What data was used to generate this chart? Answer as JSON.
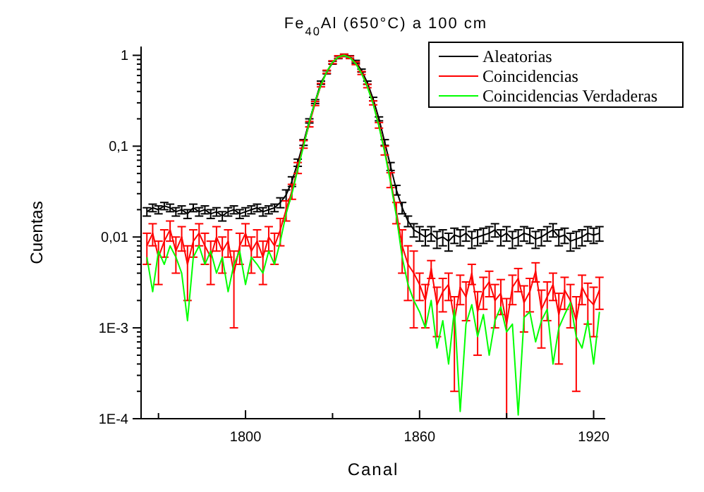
{
  "chart_data": {
    "type": "line",
    "title": "Fe$_{40}$Al (650°C) a 100 cm",
    "xlabel": "Canal",
    "ylabel": "Cuentas",
    "log": "y",
    "legend": "top right",
    "marker": "none",
    "line_style": "solid",
    "grid": false,
    "xlim": [
      1764,
      1924
    ],
    "xticks": [
      {
        "value": 1770,
        "label": null
      },
      1800,
      {
        "value": 1830,
        "label": null
      },
      1860,
      {
        "value": 1890,
        "label": null
      },
      1920
    ],
    "ylim": [
      0.0001,
      1.25
    ],
    "yticks": [
      {
        "value": 0.0001,
        "label": "1E-4"
      },
      {
        "value": 0.0002,
        "label": null
      },
      {
        "value": 0.0003,
        "label": null
      },
      {
        "value": 0.0004,
        "label": null
      },
      {
        "value": 0.0005,
        "label": null
      },
      {
        "value": 0.0006,
        "label": null
      },
      {
        "value": 0.0007,
        "label": null
      },
      {
        "value": 0.0008,
        "label": null
      },
      {
        "value": 0.0009,
        "label": null
      },
      {
        "value": 0.001,
        "label": "1E-3"
      },
      {
        "value": 0.002,
        "label": null
      },
      {
        "value": 0.003,
        "label": null
      },
      {
        "value": 0.004,
        "label": null
      },
      {
        "value": 0.005,
        "label": null
      },
      {
        "value": 0.006,
        "label": null
      },
      {
        "value": 0.007,
        "label": null
      },
      {
        "value": 0.008,
        "label": null
      },
      {
        "value": 0.009,
        "label": null
      },
      {
        "value": 0.01,
        "label": "0,01"
      },
      {
        "value": 0.02,
        "label": null
      },
      {
        "value": 0.03,
        "label": null
      },
      {
        "value": 0.04,
        "label": null
      },
      {
        "value": 0.05,
        "label": null
      },
      {
        "value": 0.06,
        "label": null
      },
      {
        "value": 0.07,
        "label": null
      },
      {
        "value": 0.08,
        "label": null
      },
      {
        "value": 0.09,
        "label": null
      },
      {
        "value": 0.1,
        "label": "0,1"
      },
      {
        "value": 0.2,
        "label": null
      },
      {
        "value": 0.3,
        "label": null
      },
      {
        "value": 0.4,
        "label": null
      },
      {
        "value": 0.5,
        "label": null
      },
      {
        "value": 0.6,
        "label": null
      },
      {
        "value": 0.7,
        "label": null
      },
      {
        "value": 0.8,
        "label": null
      },
      {
        "value": 0.9,
        "label": null
      },
      1
    ],
    "x": [
      1766,
      1768,
      1770,
      1772,
      1774,
      1776,
      1778,
      1780,
      1782,
      1784,
      1786,
      1788,
      1790,
      1792,
      1794,
      1796,
      1798,
      1800,
      1802,
      1804,
      1806,
      1808,
      1810,
      1812,
      1814,
      1816,
      1818,
      1820,
      1822,
      1824,
      1826,
      1828,
      1830,
      1832,
      1834,
      1836,
      1838,
      1840,
      1842,
      1844,
      1846,
      1848,
      1850,
      1852,
      1854,
      1856,
      1858,
      1860,
      1862,
      1864,
      1866,
      1868,
      1870,
      1872,
      1874,
      1876,
      1878,
      1880,
      1882,
      1884,
      1886,
      1888,
      1890,
      1892,
      1894,
      1896,
      1898,
      1900,
      1902,
      1904,
      1906,
      1908,
      1910,
      1912,
      1914,
      1916,
      1918,
      1920,
      1922
    ],
    "series": [
      {
        "name": "Aleatorias",
        "color": "#000000",
        "values": [
          0.019,
          0.021,
          0.02,
          0.022,
          0.021,
          0.019,
          0.02,
          0.018,
          0.021,
          0.019,
          0.02,
          0.018,
          0.019,
          0.017,
          0.019,
          0.02,
          0.018,
          0.019,
          0.02,
          0.021,
          0.019,
          0.02,
          0.021,
          0.024,
          0.029,
          0.041,
          0.066,
          0.11,
          0.19,
          0.31,
          0.5,
          0.65,
          0.83,
          0.95,
          1.0,
          0.96,
          0.85,
          0.68,
          0.5,
          0.33,
          0.2,
          0.11,
          0.06,
          0.033,
          0.021,
          0.015,
          0.012,
          0.011,
          0.01,
          0.011,
          0.0095,
          0.01,
          0.009,
          0.0105,
          0.01,
          0.011,
          0.0095,
          0.01,
          0.0105,
          0.011,
          0.012,
          0.01,
          0.011,
          0.0095,
          0.01,
          0.011,
          0.0105,
          0.0095,
          0.01,
          0.011,
          0.012,
          0.01,
          0.0105,
          0.009,
          0.0095,
          0.01,
          0.011,
          0.0105,
          0.011
        ],
        "errors": [
          0.002,
          0.002,
          0.002,
          0.002,
          0.002,
          0.002,
          0.002,
          0.002,
          0.002,
          0.002,
          0.002,
          0.002,
          0.002,
          0.002,
          0.002,
          0.002,
          0.002,
          0.002,
          0.002,
          0.002,
          0.002,
          0.002,
          0.002,
          0.003,
          0.004,
          0.005,
          0.006,
          0.008,
          0.01,
          0.015,
          0.02,
          0.025,
          0.03,
          0.03,
          0.03,
          0.03,
          0.03,
          0.025,
          0.02,
          0.015,
          0.01,
          0.008,
          0.006,
          0.004,
          0.003,
          0.002,
          0.002,
          0.002,
          0.002,
          0.002,
          0.002,
          0.002,
          0.002,
          0.002,
          0.002,
          0.002,
          0.002,
          0.002,
          0.002,
          0.002,
          0.002,
          0.002,
          0.002,
          0.002,
          0.002,
          0.002,
          0.002,
          0.002,
          0.002,
          0.002,
          0.002,
          0.002,
          0.002,
          0.002,
          0.002,
          0.002,
          0.002,
          0.002,
          0.002
        ]
      },
      {
        "name": "Coincidencias",
        "color": "#ff0000",
        "values": [
          0.008,
          0.011,
          0.006,
          0.009,
          0.012,
          0.007,
          0.01,
          0.005,
          0.009,
          0.011,
          0.008,
          0.006,
          0.01,
          0.007,
          0.009,
          0.004,
          0.008,
          0.011,
          0.007,
          0.009,
          0.006,
          0.01,
          0.008,
          0.012,
          0.02,
          0.032,
          0.058,
          0.105,
          0.175,
          0.295,
          0.47,
          0.66,
          0.84,
          0.96,
          1.0,
          0.95,
          0.82,
          0.64,
          0.46,
          0.3,
          0.17,
          0.09,
          0.043,
          0.019,
          0.008,
          0.005,
          0.004,
          0.003,
          0.002,
          0.0045,
          0.0018,
          0.0025,
          0.003,
          0.0012,
          0.0028,
          0.0022,
          0.004,
          0.0015,
          0.0026,
          0.0032,
          0.002,
          0.0024,
          0.0011,
          0.0028,
          0.0035,
          0.0019,
          0.0025,
          0.0042,
          0.0016,
          0.0022,
          0.003,
          0.0014,
          0.0026,
          0.002,
          0.0012,
          0.0028,
          0.0021,
          0.0018,
          0.0026
        ],
        "errors": [
          0.003,
          0.003,
          0.003,
          0.003,
          0.003,
          0.003,
          0.003,
          0.003,
          0.003,
          0.003,
          0.003,
          0.003,
          0.003,
          0.003,
          0.003,
          0.003,
          0.003,
          0.003,
          0.003,
          0.003,
          0.003,
          0.003,
          0.003,
          0.004,
          0.005,
          0.006,
          0.008,
          0.01,
          0.012,
          0.015,
          0.02,
          0.025,
          0.03,
          0.03,
          0.03,
          0.03,
          0.03,
          0.025,
          0.02,
          0.015,
          0.012,
          0.01,
          0.008,
          0.005,
          0.004,
          0.003,
          0.003,
          0.001,
          0.001,
          0.001,
          0.001,
          0.001,
          0.001,
          0.001,
          0.001,
          0.001,
          0.001,
          0.001,
          0.001,
          0.001,
          0.001,
          0.001,
          0.001,
          0.001,
          0.001,
          0.001,
          0.001,
          0.001,
          0.001,
          0.001,
          0.001,
          0.001,
          0.001,
          0.001,
          0.001,
          0.001,
          0.001,
          0.001,
          0.001
        ]
      },
      {
        "name": "Coincidencias Verdaderas",
        "color": "#00ff00",
        "values": [
          0.006,
          0.0025,
          0.007,
          0.005,
          0.008,
          0.006,
          0.004,
          0.0012,
          0.006,
          0.008,
          0.005,
          0.007,
          0.004,
          0.006,
          0.0025,
          0.005,
          0.007,
          0.003,
          0.006,
          0.005,
          0.004,
          0.007,
          0.005,
          0.009,
          0.018,
          0.03,
          0.055,
          0.1,
          0.185,
          0.31,
          0.47,
          0.66,
          0.84,
          0.96,
          1.0,
          0.94,
          0.81,
          0.63,
          0.45,
          0.29,
          0.165,
          0.085,
          0.04,
          0.017,
          0.006,
          0.003,
          0.002,
          0.0015,
          0.001,
          0.002,
          0.0006,
          0.0012,
          0.0004,
          0.0016,
          0.00012,
          0.0011,
          0.0018,
          0.0008,
          0.0014,
          0.0005,
          0.0012,
          0.0017,
          0.0009,
          0.0011,
          0.00011,
          0.0013,
          0.0015,
          0.0007,
          0.0012,
          0.0016,
          0.0004,
          0.001,
          0.0014,
          0.0019,
          0.0008,
          0.0006,
          0.0012,
          0.0004,
          0.0015
        ]
      }
    ]
  }
}
